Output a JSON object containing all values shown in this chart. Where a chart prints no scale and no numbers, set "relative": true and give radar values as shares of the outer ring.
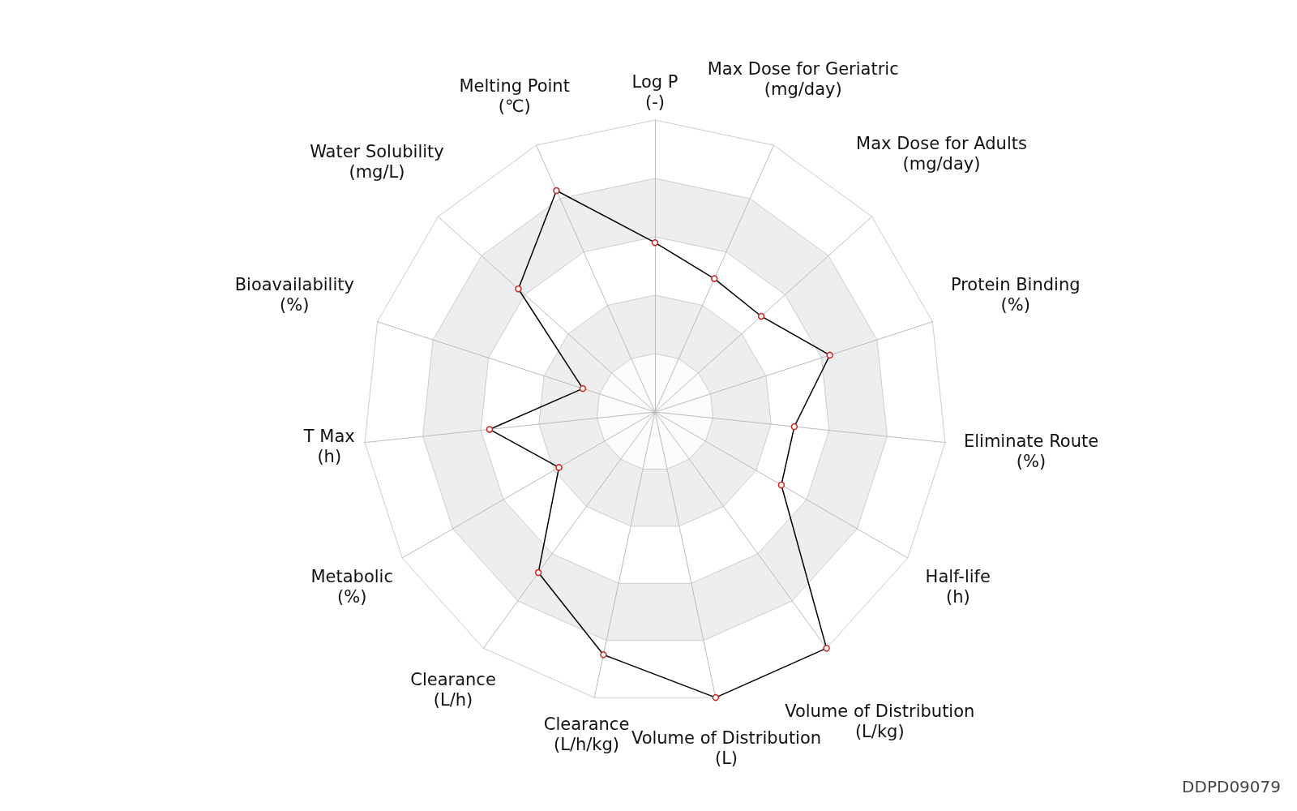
{
  "chart_data": {
    "type": "radar",
    "relative": true,
    "marker": "circle",
    "categories": [
      "Log P\n(-)",
      "Max Dose for Geriatric\n(mg/day)",
      "Max Dose for Adults\n(mg/day)",
      "Protein Binding\n(%)",
      "Eliminate Route\n(%)",
      "Half-life\n(h)",
      "Volume of Distribution\n(L/kg)",
      "Volume of Distribution\n(L)",
      "Clearance\n(L/h/kg)",
      "Clearance\n(L/h)",
      "Metabolic\n(%)",
      "T Max\n(h)",
      "Bioavailability\n(%)",
      "Water Solubility\n(mg/L)",
      "Melting Point\n(℃)"
    ],
    "series": [
      {
        "color": "#000000",
        "values": [
          0.58,
          0.5,
          0.49,
          0.63,
          0.48,
          0.5,
          1.0,
          1.0,
          0.85,
          0.68,
          0.38,
          0.57,
          0.26,
          0.63,
          0.83
        ]
      }
    ],
    "annotations": [
      "DDPD09079"
    ]
  }
}
